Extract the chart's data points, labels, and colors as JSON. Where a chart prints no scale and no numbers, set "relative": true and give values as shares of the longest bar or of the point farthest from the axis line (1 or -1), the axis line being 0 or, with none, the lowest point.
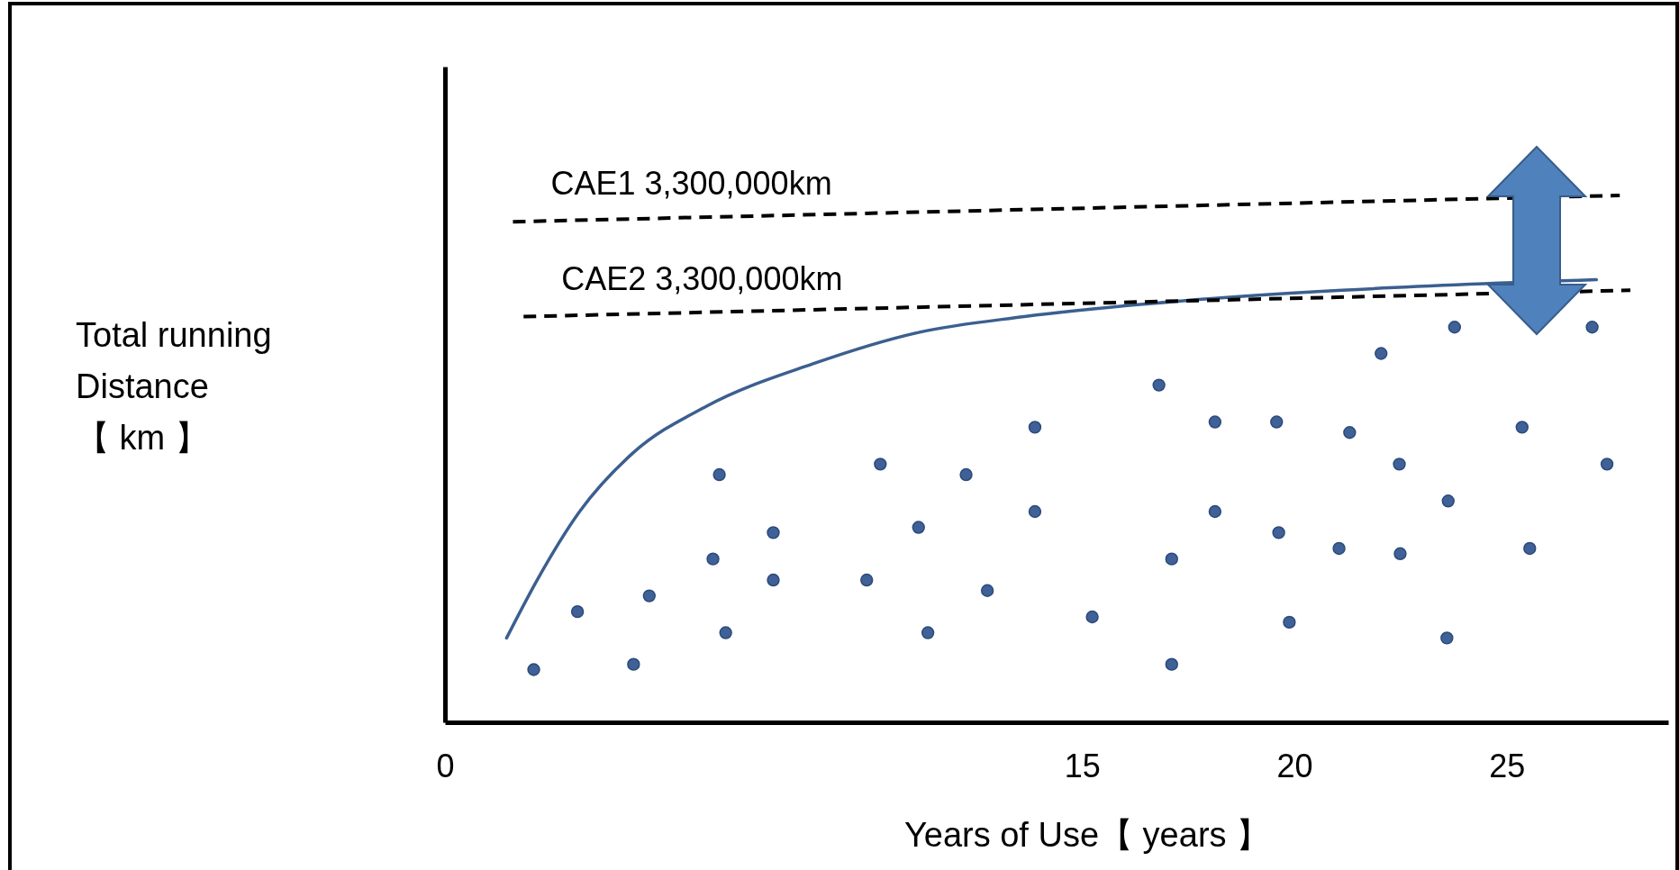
{
  "chart_data": {
    "type": "scatter",
    "relative": true,
    "xlabel": "Years of Use【 years 】",
    "ylabel": "Total running\nDistance\n【 km 】",
    "xlim": [
      0,
      28.8
    ],
    "xticks": [
      0,
      15,
      20,
      25
    ],
    "tick_labels": "x",
    "series": [
      {
        "color": "#3f6197",
        "marker": "circle",
        "x": [
          2.09,
          3.12,
          4.44,
          4.81,
          6.31,
          6.46,
          6.61,
          7.73,
          7.73,
          9.93,
          10.25,
          11.15,
          11.37,
          12.27,
          12.77,
          13.89,
          13.89,
          15.24,
          16.81,
          17.11,
          17.11,
          18.13,
          18.13,
          19.58,
          19.63,
          19.88,
          21.05,
          21.3,
          22.04,
          22.47,
          22.49,
          23.59,
          23.62,
          23.77,
          25.36,
          25.54,
          27.01,
          27.36
        ],
        "values": [
          0.1,
          0.21,
          0.11,
          0.24,
          0.31,
          0.47,
          0.17,
          0.36,
          0.27,
          0.27,
          0.49,
          0.37,
          0.17,
          0.47,
          0.25,
          0.56,
          0.4,
          0.2,
          0.64,
          0.31,
          0.11,
          0.57,
          0.4,
          0.57,
          0.36,
          0.19,
          0.33,
          0.55,
          0.7,
          0.49,
          0.32,
          0.16,
          0.42,
          0.75,
          0.56,
          0.33,
          0.75,
          0.49
        ]
      },
      {
        "type": "line",
        "color": "#3b5f8f",
        "marker": "none",
        "line_style": "solid",
        "x": [
          1.45,
          2.17,
          3.17,
          4.41,
          6.16,
          8.65,
          11.15,
          13.64,
          17.38,
          21.12,
          27.11
        ],
        "values": [
          0.16,
          0.27,
          0.4,
          0.51,
          0.6,
          0.68,
          0.74,
          0.77,
          0.8,
          0.82,
          0.84
        ]
      },
      {
        "type": "line",
        "name": "CAE1 3,300,000km",
        "color": "#000000",
        "marker": "none",
        "line_style": "dashed",
        "x": [
          1.6,
          27.66
        ],
        "values": [
          0.95,
          1.0
        ]
      },
      {
        "type": "line",
        "name": "CAE2 3,300,000km",
        "color": "#000000",
        "marker": "none",
        "line_style": "dashed",
        "x": [
          1.85,
          27.91
        ],
        "values": [
          0.77,
          0.82
        ]
      }
    ]
  }
}
